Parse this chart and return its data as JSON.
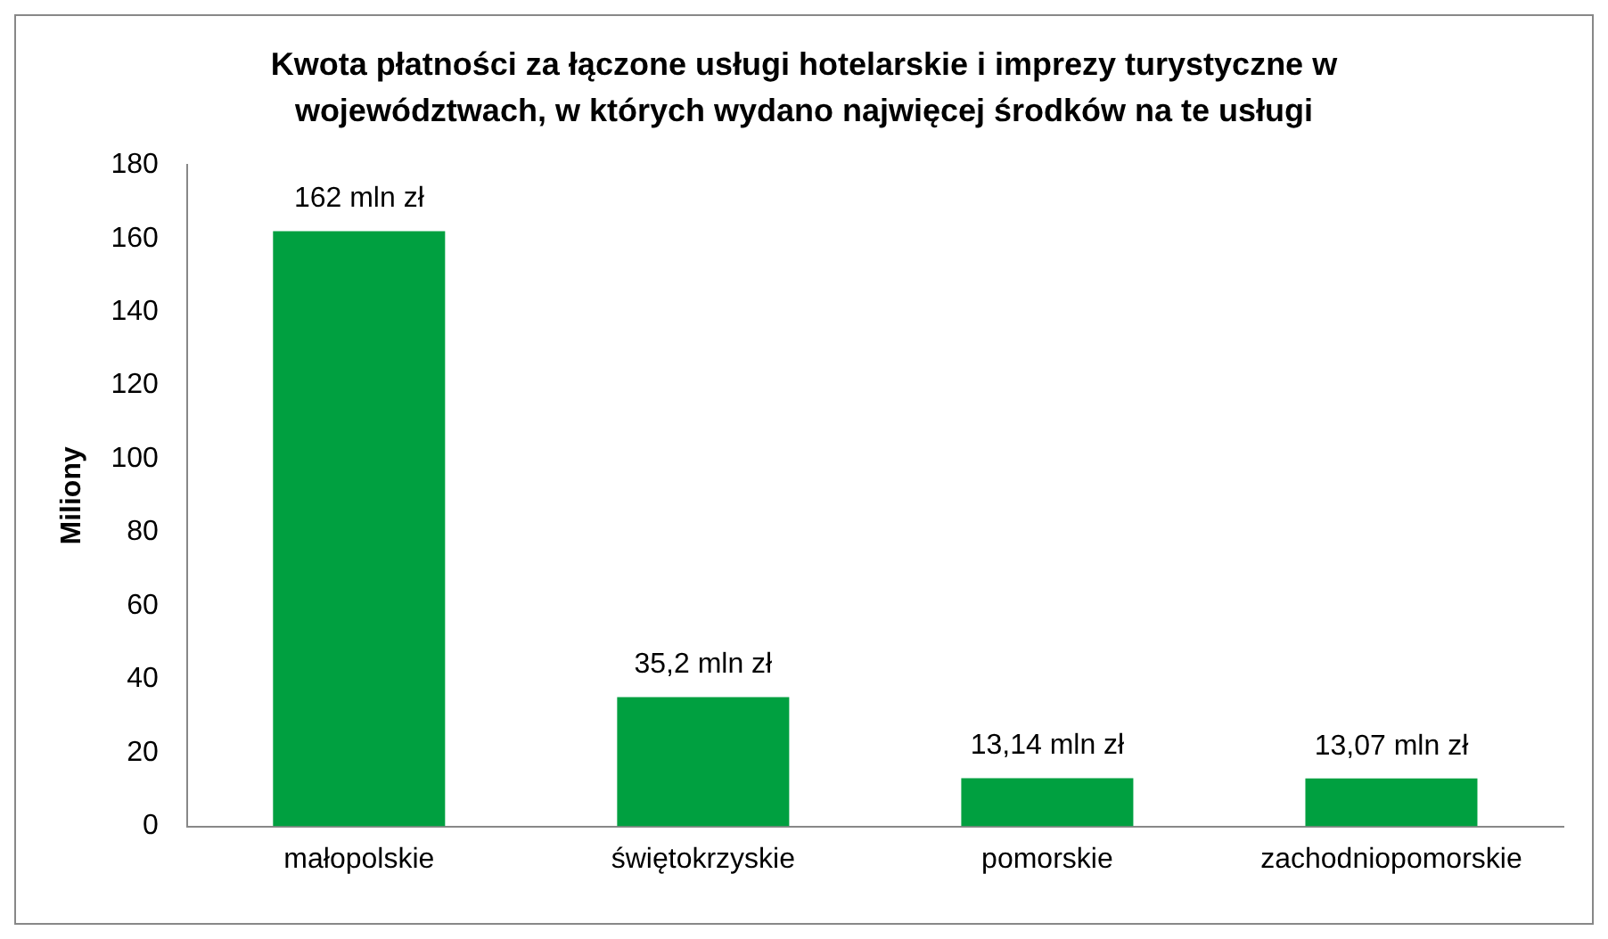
{
  "chart_data": {
    "type": "bar",
    "title": "Kwota płatności za łączone usługi hotelarskie i imprezy turystyczne w województwach, w których wydano najwięcej środków na te usługi",
    "ylabel": "Miliony",
    "categories": [
      "małopolskie",
      "świętokrzyskie",
      "pomorskie",
      "zachodniopomorskie"
    ],
    "values": [
      162,
      35.2,
      13.14,
      13.07
    ],
    "value_labels": [
      "162 mln zł",
      "35,2 mln zł",
      "13,14 mln zł",
      "13,07 mln zł"
    ],
    "color": "#00a040",
    "ylim": [
      0,
      180
    ],
    "yticks": [
      0,
      20,
      40,
      60,
      80,
      100,
      120,
      140,
      160,
      180
    ],
    "grid": false,
    "legend": false
  }
}
